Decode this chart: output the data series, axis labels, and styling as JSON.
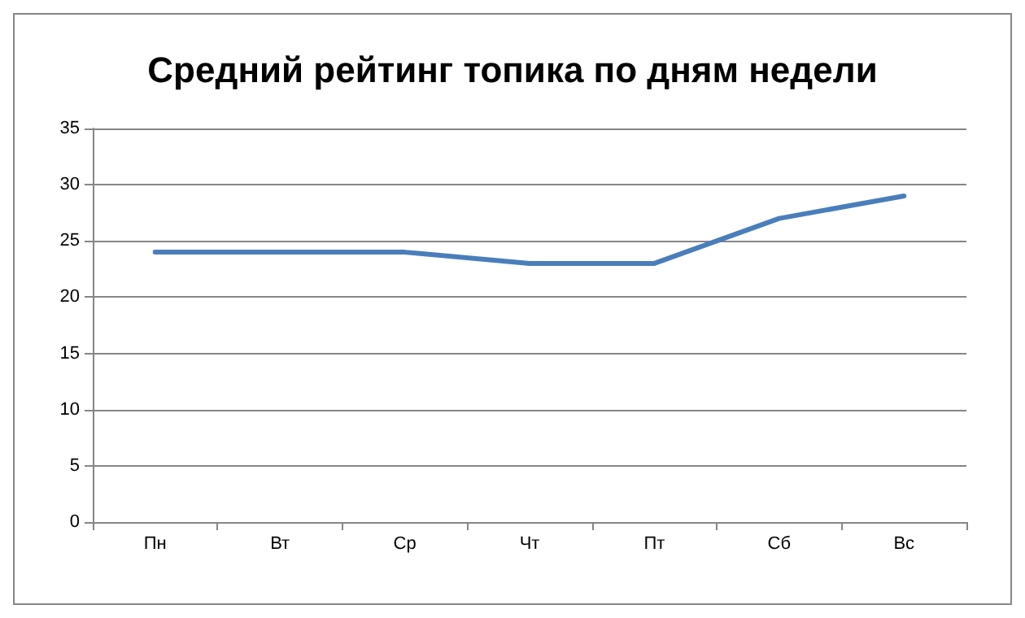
{
  "chart_data": {
    "type": "line",
    "title": "Средний рейтинг топика по дням недели",
    "categories": [
      "Пн",
      "Вт",
      "Ср",
      "Чт",
      "Пт",
      "Сб",
      "Вс"
    ],
    "series": [
      {
        "color": "#4a7ebb",
        "values": [
          24,
          24,
          24,
          23,
          23,
          27,
          29
        ]
      }
    ],
    "ylim": [
      0,
      35
    ],
    "yticks": [
      0,
      5,
      10,
      15,
      20,
      25,
      30,
      35
    ],
    "grid": "y",
    "marker": "none",
    "line_style": "solid"
  }
}
